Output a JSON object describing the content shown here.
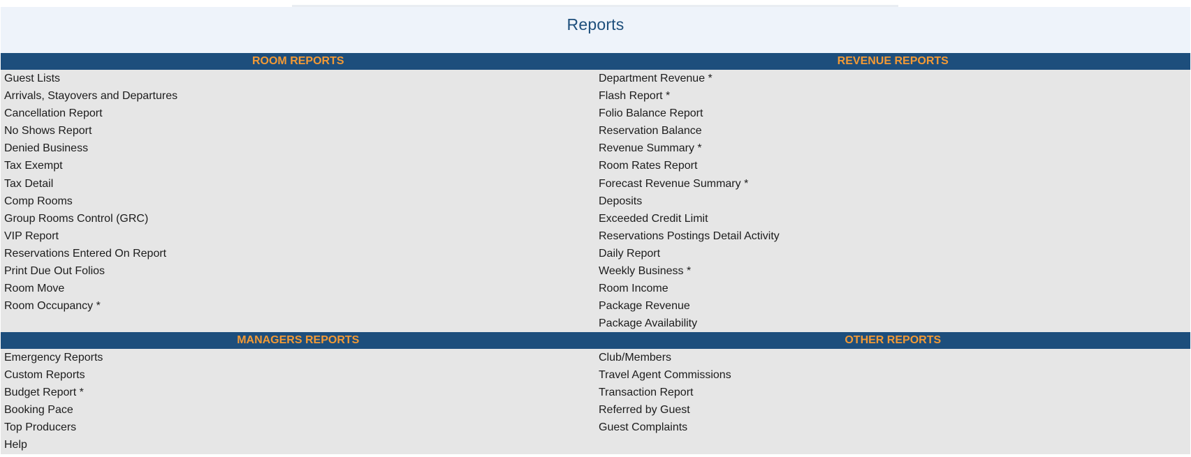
{
  "page": {
    "title": "Reports"
  },
  "sections": {
    "room_reports": {
      "header": "ROOM REPORTS",
      "items": [
        "Guest Lists",
        "Arrivals, Stayovers and Departures",
        "Cancellation Report",
        "No Shows Report",
        "Denied Business",
        "Tax Exempt",
        "Tax Detail",
        "Comp Rooms",
        "Group Rooms Control (GRC)",
        "VIP Report",
        "Reservations Entered On Report",
        "Print Due Out Folios",
        "Room Move",
        "Room Occupancy *"
      ]
    },
    "revenue_reports": {
      "header": "REVENUE REPORTS",
      "items": [
        "Department Revenue *",
        "Flash Report *",
        "Folio Balance Report",
        "Reservation Balance",
        "Revenue Summary *",
        "Room Rates Report",
        "Forecast Revenue Summary *",
        "Deposits",
        "Exceeded Credit Limit",
        "Reservations Postings Detail Activity",
        "Daily Report",
        "Weekly Business *",
        "Room Income",
        "Package Revenue",
        "Package Availability"
      ]
    },
    "managers_reports": {
      "header": "MANAGERS REPORTS",
      "items": [
        "Emergency Reports",
        "Custom Reports",
        "Budget Report *",
        "Booking Pace",
        "Top Producers",
        "Help"
      ]
    },
    "other_reports": {
      "header": "OTHER REPORTS",
      "items": [
        "Club/Members",
        "Travel Agent Commissions",
        "Transaction Report",
        "Referred by Guest",
        "Guest Complaints"
      ]
    }
  },
  "colors": {
    "header_bg": "#1d4e7c",
    "header_text": "#f39a35",
    "title_text": "#1e4f7c",
    "title_panel_bg": "#eef3fa",
    "list_bg": "#e6e6e6"
  }
}
